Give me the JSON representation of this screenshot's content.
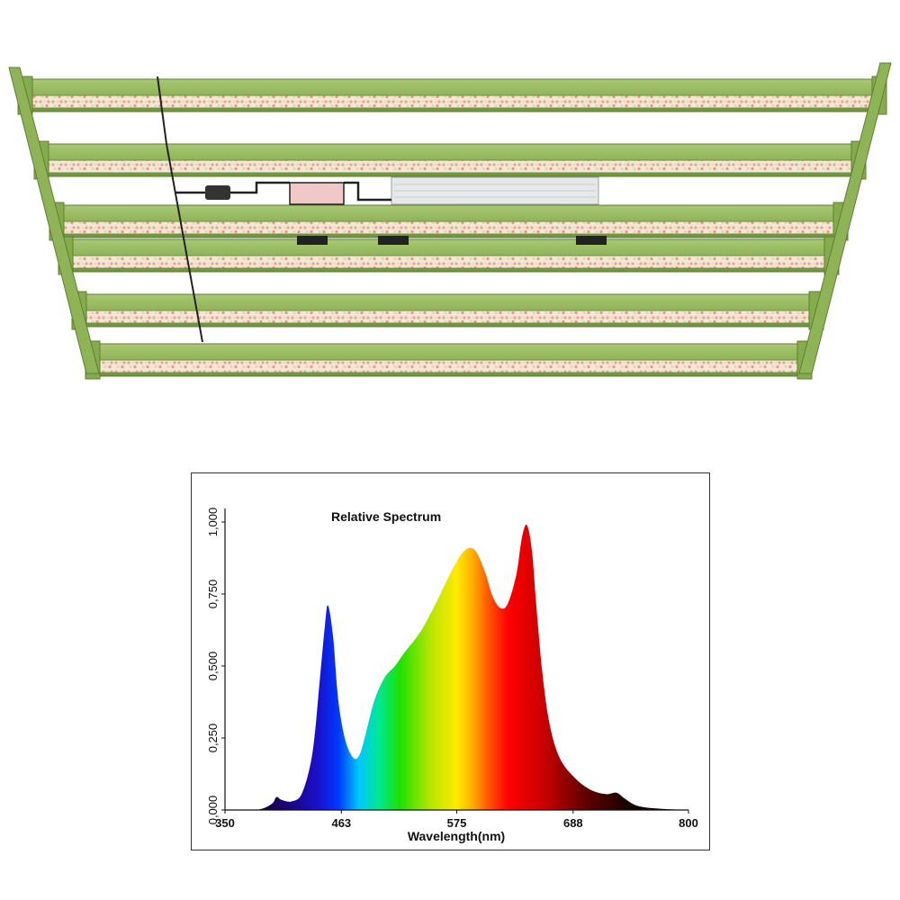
{
  "chart_data": {
    "type": "area",
    "title": "Relative Spectrum",
    "xlabel": "Wavelength(nm)",
    "ylabel": "",
    "xlim": [
      350,
      800
    ],
    "ylim": [
      0,
      1
    ],
    "x_ticks": [
      "350",
      "463",
      "575",
      "688",
      "800"
    ],
    "y_ticks": [
      "0,000",
      "0,250",
      "0,500",
      "0,750",
      "1,000"
    ],
    "grid": false,
    "legend": "none",
    "x": [
      350,
      380,
      395,
      400,
      405,
      415,
      425,
      435,
      442,
      447,
      450,
      455,
      460,
      467,
      475,
      481,
      487,
      495,
      505,
      515,
      525,
      540,
      555,
      570,
      580,
      588,
      595,
      603,
      610,
      618,
      625,
      633,
      638,
      643,
      648,
      652,
      658,
      665,
      675,
      690,
      705,
      720,
      730,
      738,
      750,
      770,
      800
    ],
    "series": [
      {
        "values": [
          0.0,
          0.0,
          0.02,
          0.045,
          0.035,
          0.03,
          0.06,
          0.2,
          0.45,
          0.64,
          0.71,
          0.6,
          0.38,
          0.24,
          0.18,
          0.195,
          0.27,
          0.38,
          0.46,
          0.5,
          0.55,
          0.62,
          0.72,
          0.83,
          0.89,
          0.91,
          0.89,
          0.82,
          0.74,
          0.7,
          0.72,
          0.82,
          0.94,
          0.99,
          0.9,
          0.72,
          0.48,
          0.3,
          0.18,
          0.11,
          0.07,
          0.055,
          0.06,
          0.04,
          0.015,
          0.005,
          0.0
        ]
      }
    ]
  }
}
